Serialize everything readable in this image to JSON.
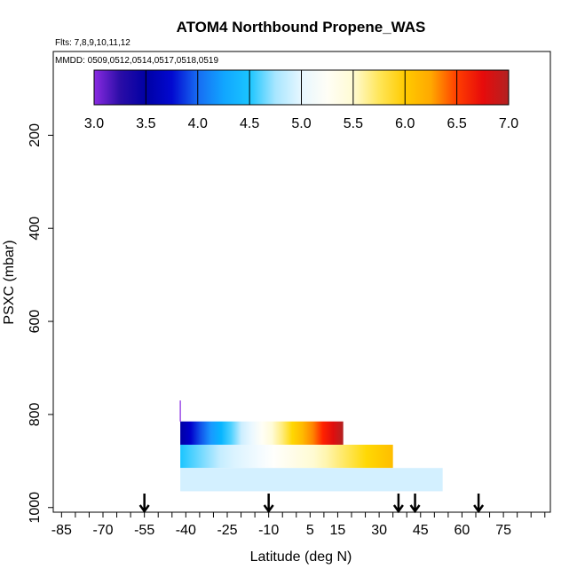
{
  "chart_data": {
    "type": "heatmap",
    "title": "ATOM4 Northbound Propene_WAS",
    "flights_note": "Flts: 7,8,9,10,11,12",
    "dates_note": "MMDD: 0509,0512,0514,0517,0518,0519",
    "xlabel": "Latitude (deg N)",
    "ylabel": "PSXC (mbar)",
    "xlim": [
      -88,
      92
    ],
    "ylim": [
      1010,
      20
    ],
    "x_tick_labels": [
      "-85",
      "-70",
      "-55",
      "-40",
      "-25",
      "-10",
      "5",
      "15",
      "30",
      "45",
      "60",
      "75"
    ],
    "x_tick_values": [
      -85,
      -70,
      -55,
      -40,
      -25,
      -10,
      5,
      15,
      30,
      45,
      60,
      75
    ],
    "y_tick_labels": [
      "200",
      "400",
      "600",
      "800",
      "1000"
    ],
    "y_tick_values": [
      200,
      400,
      600,
      800,
      1000
    ],
    "colorbar": {
      "min": 3.0,
      "max": 7.0,
      "tick_labels": [
        "3.0",
        "3.5",
        "4.0",
        "4.5",
        "5.0",
        "5.5",
        "6.0",
        "6.5",
        "7.0"
      ],
      "tick_values": [
        3.0,
        3.5,
        4.0,
        4.5,
        5.0,
        5.5,
        6.0,
        6.5,
        7.0
      ],
      "colors": [
        "#8a2be2",
        "#00008b",
        "#0000cd",
        "#1e90ff",
        "#00bfff",
        "#cfefff",
        "#ffffff",
        "#fffacd",
        "#ffd700",
        "#ffa500",
        "#ff0000",
        "#b22222"
      ]
    },
    "cells": [
      {
        "lat_start": -42,
        "lat_end": 17,
        "p_top": 815,
        "p_bottom": 865,
        "values_gradient": [
          3.5,
          7.0
        ]
      },
      {
        "lat_start": -42,
        "lat_end": 35,
        "p_top": 865,
        "p_bottom": 915,
        "values_gradient": [
          4.5,
          6.1
        ]
      },
      {
        "lat_start": -42,
        "lat_end": 53,
        "p_top": 915,
        "p_bottom": 965,
        "value": 4.85
      },
      {
        "lat_start": -42.2,
        "lat_end": -41.8,
        "p_top": 770,
        "p_bottom": 815,
        "value": 3.0
      }
    ],
    "arrows_latitude": [
      -55,
      -10,
      37,
      43,
      66
    ]
  }
}
